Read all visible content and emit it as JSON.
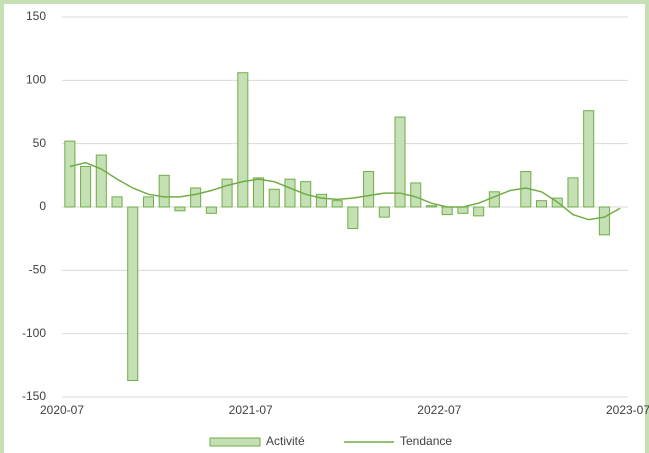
{
  "chart_data": {
    "type": "bar-line",
    "categories": [
      null,
      null,
      null,
      null,
      null,
      null,
      null,
      null,
      null,
      null,
      null,
      null,
      null,
      null,
      null,
      null,
      null,
      null,
      null,
      null,
      null,
      null,
      null,
      null,
      null,
      null,
      null,
      null,
      null,
      null,
      null,
      null,
      null,
      null,
      null,
      null
    ],
    "xticks": [
      "2020-07",
      "2021-07",
      "2022-07",
      "2023-07"
    ],
    "series": [
      {
        "name": "Activité",
        "color": "#c5e0b4",
        "values": [
          52,
          32,
          41,
          8,
          -137,
          8,
          25,
          -3,
          15,
          -5,
          22,
          106,
          23,
          14,
          22,
          20,
          10,
          5,
          -17,
          28,
          -8,
          71,
          19,
          1,
          -6,
          -5,
          -7,
          12,
          0,
          28,
          5,
          7,
          23,
          76,
          -22,
          0
        ]
      },
      {
        "name": "Tendance",
        "color": "#70ad47",
        "values": [
          32,
          35,
          30,
          22,
          15,
          10,
          8,
          8,
          10,
          13,
          17,
          20,
          22,
          20,
          15,
          10,
          7,
          6,
          7,
          9,
          11,
          11,
          8,
          3,
          0,
          0,
          3,
          8,
          13,
          15,
          12,
          4,
          -6,
          -10,
          -8,
          -1
        ]
      }
    ],
    "ylim": [
      -150,
      150
    ],
    "yticks": [
      -150,
      -100,
      -50,
      0,
      50,
      100,
      150
    ],
    "grid": true
  }
}
